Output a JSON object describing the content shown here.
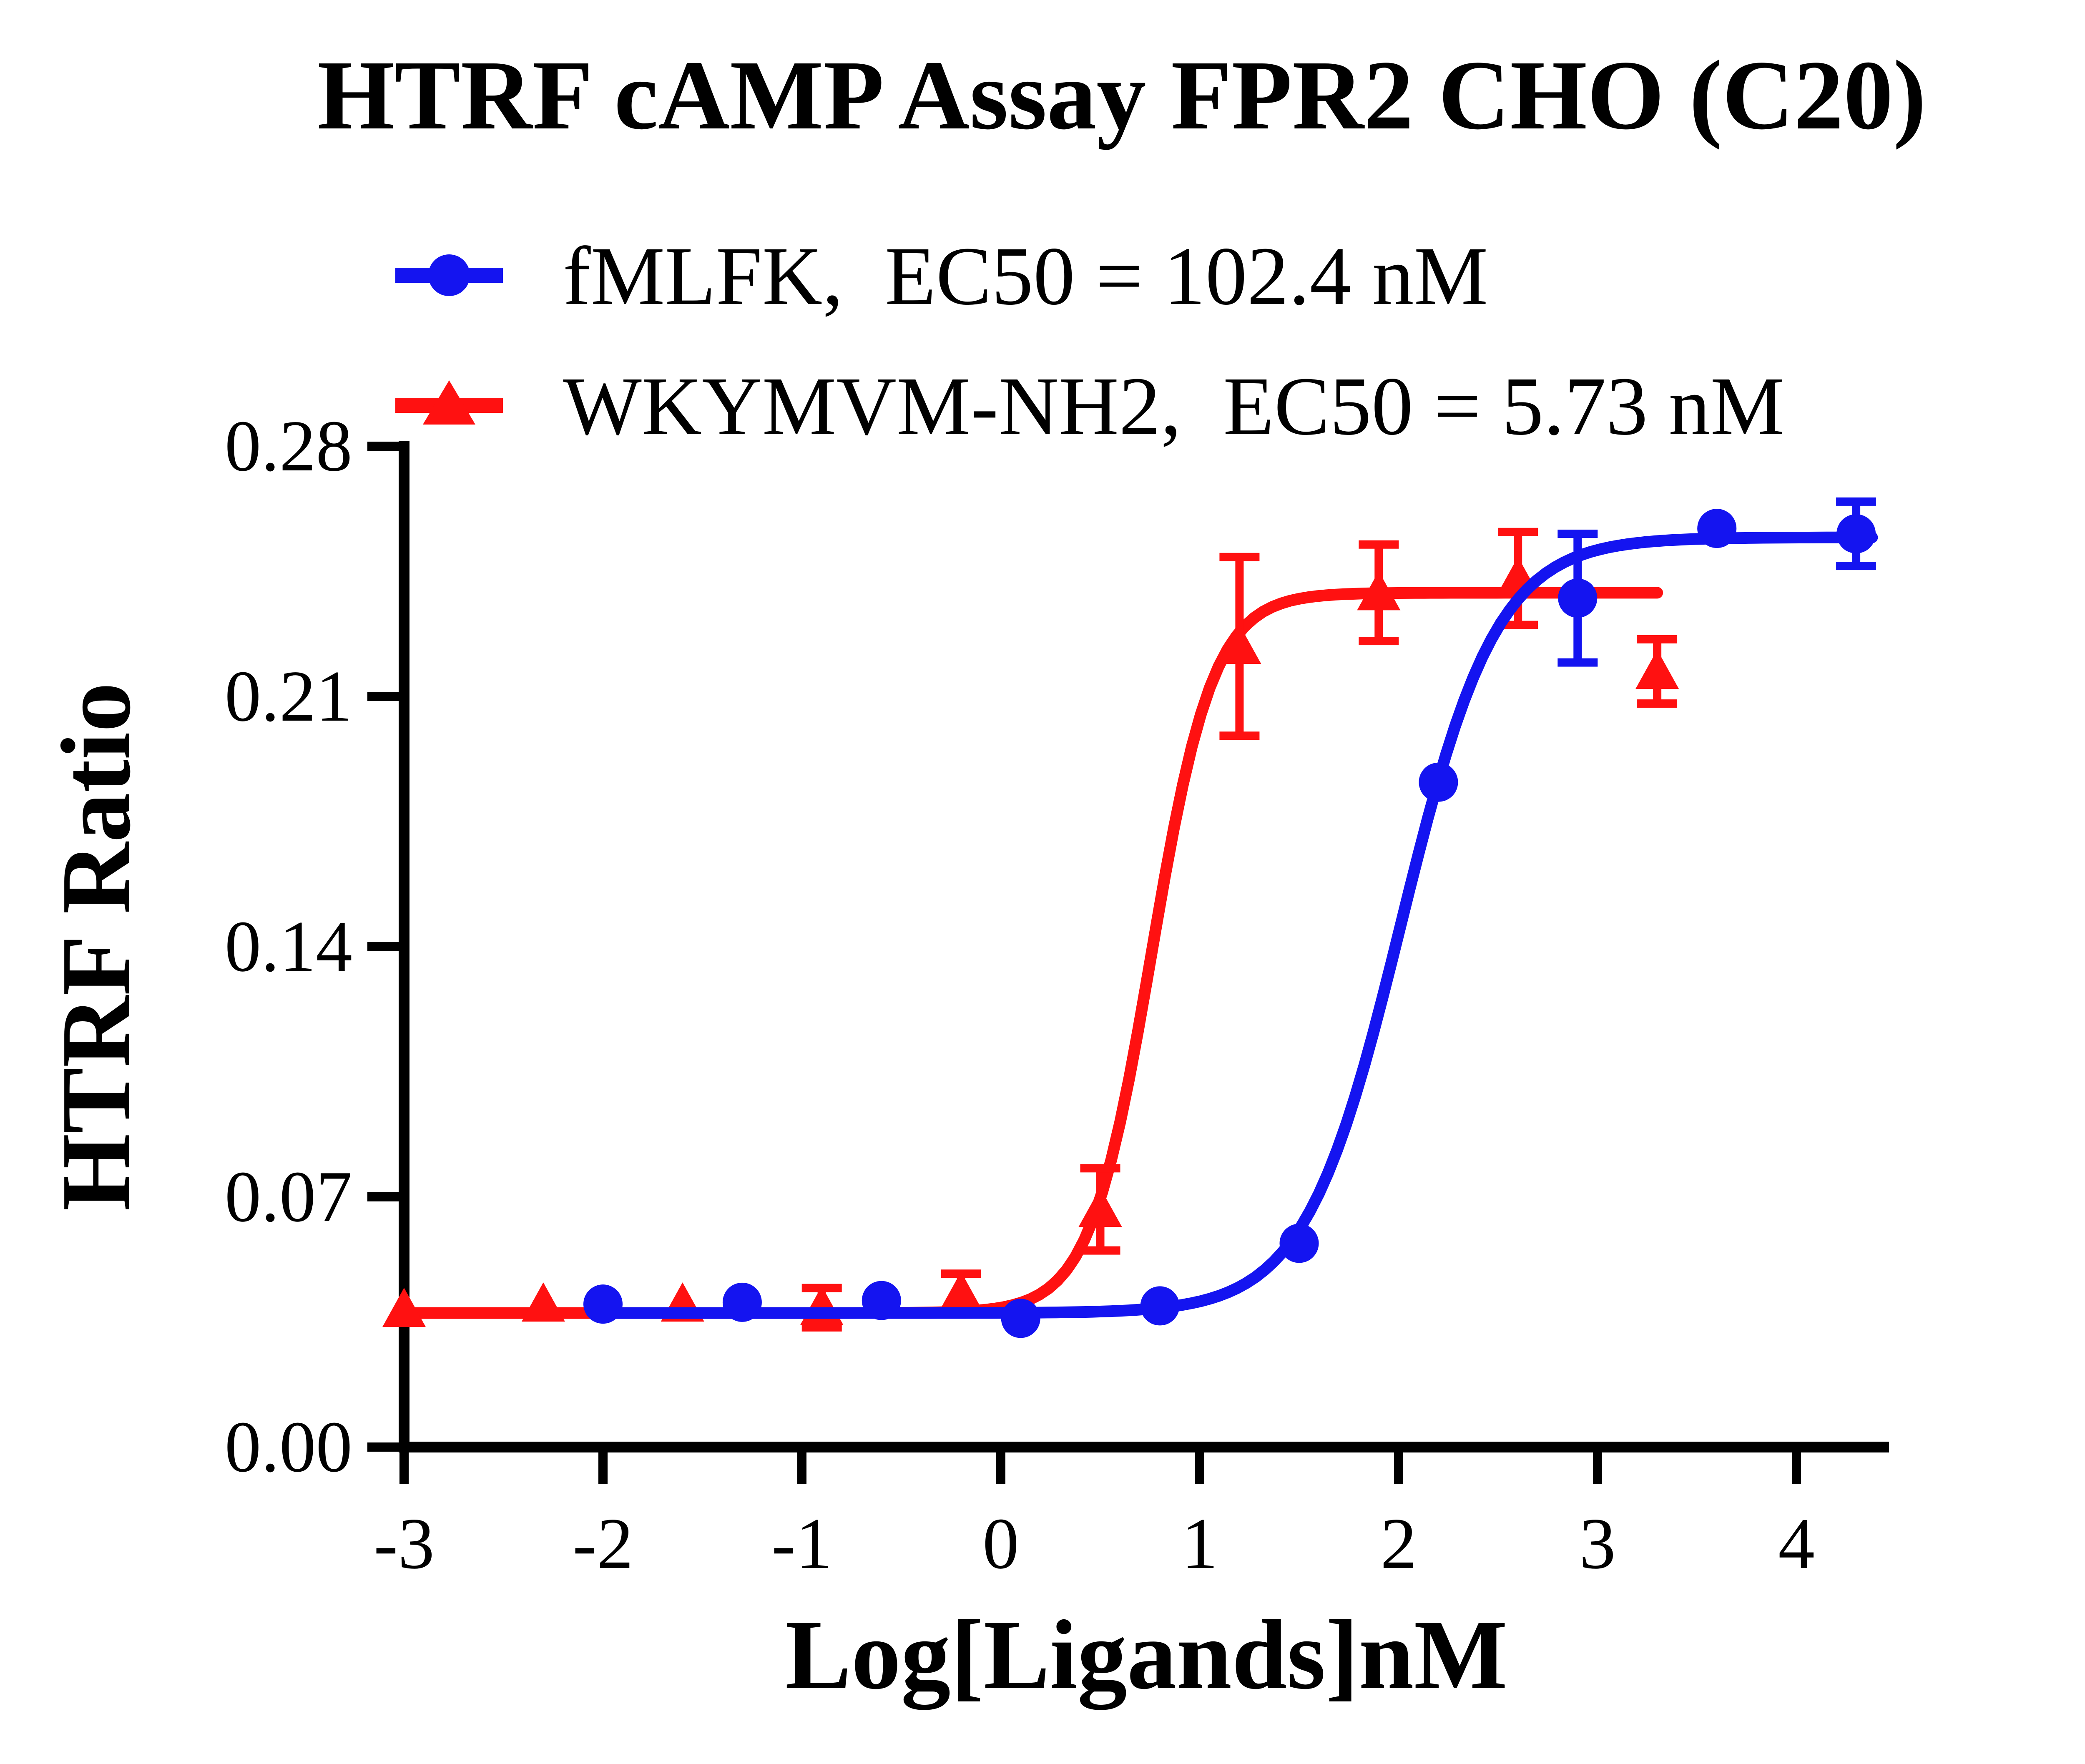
{
  "title": "HTRF cAMP Assay FPR2 CHO (C20)",
  "colors": {
    "blue": "#1414f0",
    "red": "#ff1111",
    "axis": "#000000",
    "background": "#ffffff"
  },
  "legend": [
    {
      "label": "fMLFK,  EC50 = 102.4 nM",
      "series": "fMLFK",
      "marker": "circle",
      "color": "#1414f0",
      "ec50_nM": 102.4
    },
    {
      "label": "WKYMVM-NH2,  EC50 = 5.73 nM",
      "series": "WKYMVM-NH2",
      "marker": "triangle",
      "color": "#ff1111",
      "ec50_nM": 5.73
    }
  ],
  "chart_data": {
    "type": "scatter",
    "title": "HTRF cAMP Assay FPR2 CHO (C20)",
    "xlabel": "Log[Ligands]nM",
    "ylabel": "HTRF Ratio",
    "xlim": [
      -3,
      4.47
    ],
    "ylim": [
      0,
      0.28
    ],
    "grid": false,
    "legend_position": "top-left",
    "x_ticks": [
      "-3",
      "-2",
      "-1",
      "0",
      "1",
      "2",
      "3",
      "4"
    ],
    "x_tick_values": [
      -3,
      -2,
      -1,
      0,
      1,
      2,
      3,
      4
    ],
    "y_ticks": [
      "0.00",
      "0.07",
      "0.14",
      "0.21",
      "0.28"
    ],
    "y_tick_values": [
      0,
      0.07,
      0.14,
      0.21,
      0.28
    ],
    "series": [
      {
        "name": "fMLFK",
        "marker": "circle",
        "color": "#1414f0",
        "ec50_nM": 102.4,
        "points": [
          {
            "x": -2.0,
            "y": 0.04,
            "err": 0
          },
          {
            "x": -1.3,
            "y": 0.0405,
            "err": 0
          },
          {
            "x": -0.6,
            "y": 0.041,
            "err": 0
          },
          {
            "x": 0.1,
            "y": 0.036,
            "err": 0
          },
          {
            "x": 0.8,
            "y": 0.0395,
            "err": 0
          },
          {
            "x": 1.5,
            "y": 0.057,
            "err": 0
          },
          {
            "x": 2.2,
            "y": 0.186,
            "err": 0
          },
          {
            "x": 2.9,
            "y": 0.2375,
            "err": 0.018
          },
          {
            "x": 3.6,
            "y": 0.257,
            "err": 0
          },
          {
            "x": 4.3,
            "y": 0.2555,
            "err": 0.009
          }
        ],
        "fit": {
          "model": "sigmoid",
          "bottom": 0.0375,
          "top": 0.2545,
          "logEC50": 2.0103,
          "hill": 1.8,
          "draw_from": -2.0,
          "draw_to": 4.38
        }
      },
      {
        "name": "WKYMVM-NH2",
        "marker": "triangle",
        "color": "#ff1111",
        "ec50_nM": 5.73,
        "points": [
          {
            "x": -3.0,
            "y": 0.0385,
            "err": 0
          },
          {
            "x": -2.3,
            "y": 0.04,
            "err": 0
          },
          {
            "x": -1.6,
            "y": 0.04,
            "err": 0
          },
          {
            "x": -0.9,
            "y": 0.039,
            "err": 0.0055
          },
          {
            "x": -0.2,
            "y": 0.043,
            "err": 0.0055
          },
          {
            "x": 0.5,
            "y": 0.0665,
            "err": 0.0115
          },
          {
            "x": 1.2,
            "y": 0.224,
            "err": 0.025
          },
          {
            "x": 1.9,
            "y": 0.239,
            "err": 0.0135
          },
          {
            "x": 2.6,
            "y": 0.243,
            "err": 0.013
          },
          {
            "x": 3.3,
            "y": 0.217,
            "err": 0.009
          }
        ],
        "fit": {
          "model": "sigmoid",
          "bottom": 0.0375,
          "top": 0.239,
          "logEC50": 0.7582,
          "hill": 2.8,
          "draw_from": -3.0,
          "draw_to": 3.3
        }
      }
    ]
  }
}
